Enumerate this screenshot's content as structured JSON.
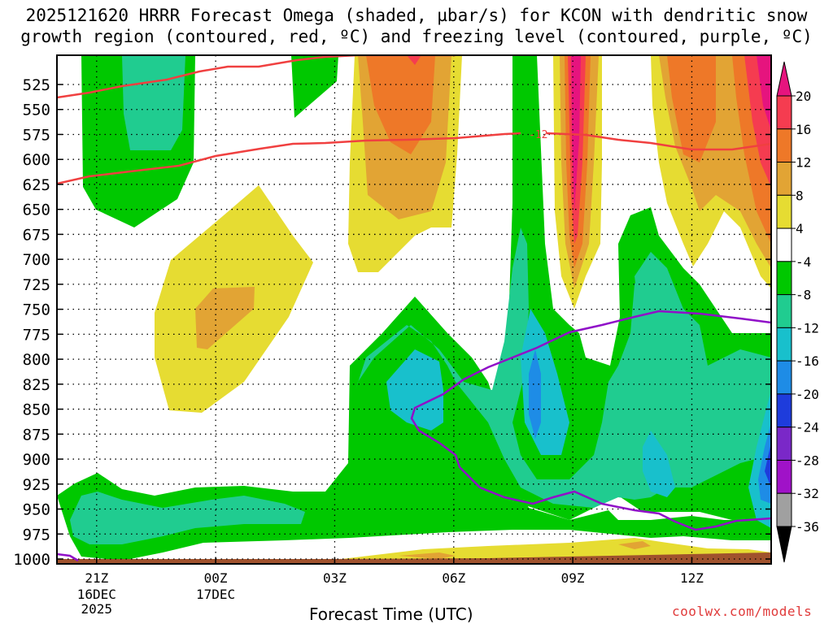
{
  "chart_data": {
    "type": "contour",
    "title_line1": "2025121620 HRRR Forecast Omega (shaded, µbar/s) for KCON with dendritic snow",
    "title_line2": "growth region (contoured, red, ºC) and freezing level (contoured, purple, ºC)",
    "xlabel": "Forecast Time (UTC)",
    "x_ticks": [
      {
        "hour": 0,
        "label": "21Z",
        "sub1": "16DEC",
        "sub2": "2025"
      },
      {
        "hour": 3,
        "label": "00Z",
        "sub1": "17DEC",
        "sub2": ""
      },
      {
        "hour": 6,
        "label": "03Z",
        "sub1": "",
        "sub2": ""
      },
      {
        "hour": 9,
        "label": "06Z",
        "sub1": "",
        "sub2": ""
      },
      {
        "hour": 12,
        "label": "09Z",
        "sub1": "",
        "sub2": ""
      },
      {
        "hour": 15,
        "label": "12Z",
        "sub1": "",
        "sub2": ""
      }
    ],
    "x_range_hours": [
      -1,
      17
    ],
    "y_levels_hpa": [
      525,
      550,
      575,
      600,
      625,
      650,
      675,
      700,
      725,
      750,
      775,
      800,
      825,
      850,
      875,
      900,
      925,
      950,
      975,
      1000
    ],
    "y_range_hpa": [
      500,
      1005
    ],
    "colorbar": {
      "labels": [
        "20",
        "16",
        "12",
        "8",
        "4",
        "-4",
        "-8",
        "-12",
        "-16",
        "-20",
        "-24",
        "-28",
        "-32",
        "-36"
      ],
      "bins": [
        {
          "range": "16 to 20",
          "color": "#f53c50"
        },
        {
          "range": "12 to 16",
          "color": "#ee7828"
        },
        {
          "range": "8 to 12",
          "color": "#e2a434"
        },
        {
          "range": "4 to 8",
          "color": "#e6dc32"
        },
        {
          "range": "-4 to 4",
          "color": "#ffffff"
        },
        {
          "range": "-8 to -4",
          "color": "#00c800"
        },
        {
          "range": "-12 to -8",
          "color": "#20cc90"
        },
        {
          "range": "-16 to -12",
          "color": "#18c0cc"
        },
        {
          "range": "-20 to -16",
          "color": "#1e8ce6"
        },
        {
          "range": "-24 to -20",
          "color": "#1e3cdc"
        },
        {
          "range": "-28 to -24",
          "color": "#7a28c8"
        },
        {
          "range": "-32 to -28",
          "color": "#a012c8"
        },
        {
          "range": "-36 to -32",
          "color": "#a0a0a0"
        }
      ],
      "top_arrow_color": "#e6147e",
      "bottom_arrow_color": "#000000"
    },
    "dgz_contour_label": "-12",
    "dgz_color": "#f04040",
    "freezing_color": "#9010c8",
    "ground_color": "#a0522d",
    "credit": "coolwx.com/models"
  }
}
